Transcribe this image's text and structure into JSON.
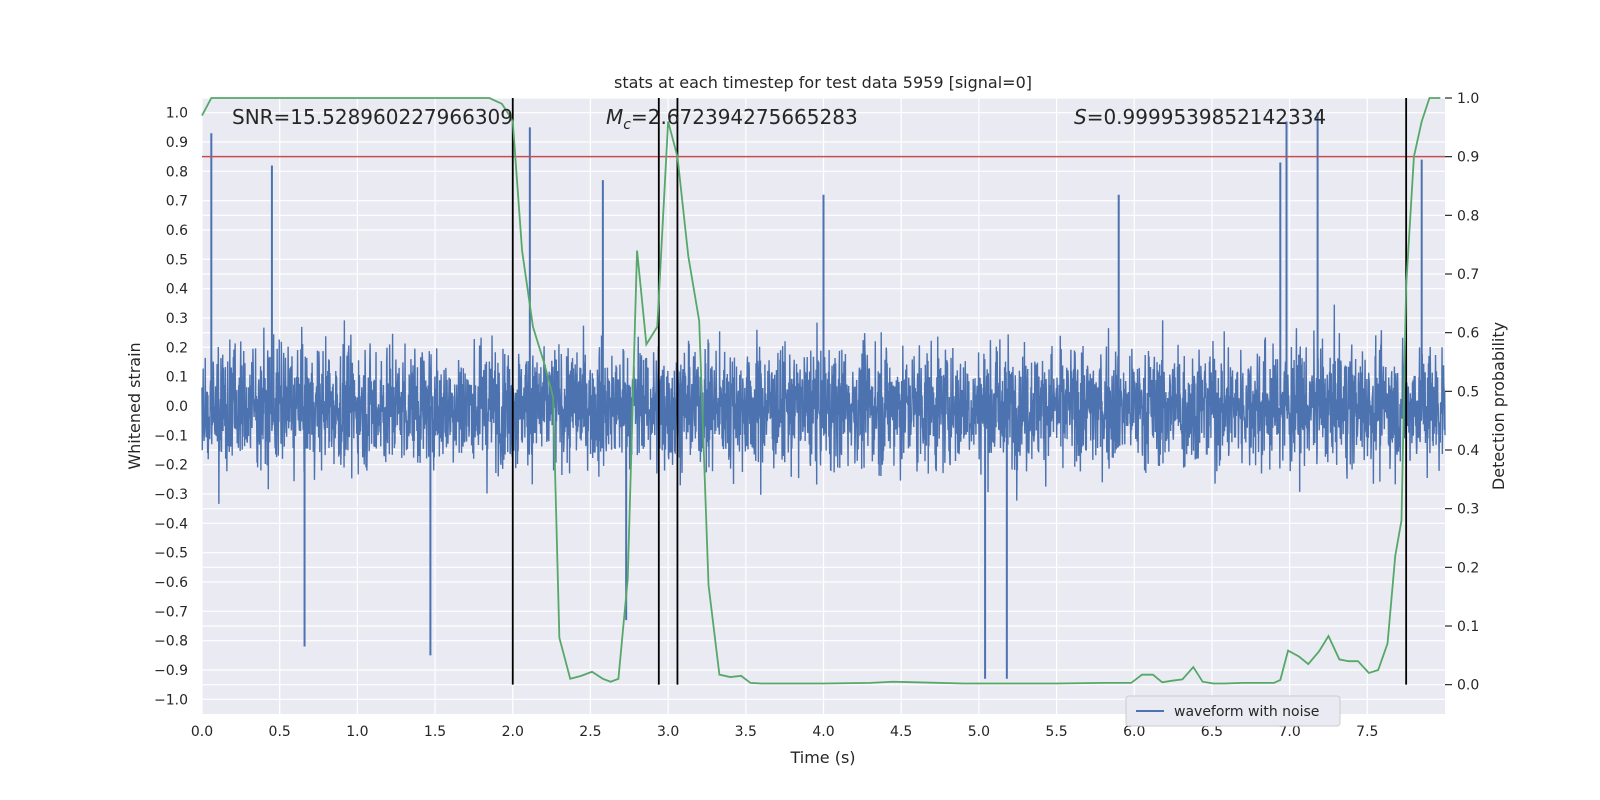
{
  "chart_data": {
    "type": "line",
    "title": "stats at each timestep for test data 5959 [signal=0]",
    "xlabel": "Time (s)",
    "ylabel": "Whitened strain",
    "y2label": "Detection probability",
    "xlim": [
      0.0,
      8.0
    ],
    "ylim": [
      -1.05,
      1.05
    ],
    "y2lim": [
      -0.05,
      1.0
    ],
    "xticks": [
      0.0,
      0.5,
      1.0,
      1.5,
      2.0,
      2.5,
      3.0,
      3.5,
      4.0,
      4.5,
      5.0,
      5.5,
      6.0,
      6.5,
      7.0,
      7.5
    ],
    "xtick_labels": [
      "0.0",
      "0.5",
      "1.0",
      "1.5",
      "2.0",
      "2.5",
      "3.0",
      "3.5",
      "4.0",
      "4.5",
      "5.0",
      "5.5",
      "6.0",
      "6.5",
      "7.0",
      "7.5"
    ],
    "yticks": [
      1.0,
      0.9,
      0.8,
      0.7,
      0.6,
      0.5,
      0.4,
      0.3,
      0.2,
      0.1,
      0.0,
      -0.1,
      -0.2,
      -0.3,
      -0.4,
      -0.5,
      -0.6,
      -0.7,
      -0.8,
      -0.9,
      -1.0
    ],
    "ytick_labels": [
      "1.0",
      "0.9",
      "0.8",
      "0.7",
      "0.6",
      "0.5",
      "0.4",
      "0.3",
      "0.2",
      "0.1",
      "0.0",
      "−0.1",
      "−0.2",
      "−0.3",
      "−0.4",
      "−0.5",
      "−0.6",
      "−0.7",
      "−0.8",
      "−0.9",
      "−1.0"
    ],
    "y2ticks": [
      1.0,
      0.9,
      0.8,
      0.7,
      0.6,
      0.5,
      0.4,
      0.3,
      0.2,
      0.1,
      0.0
    ],
    "y2tick_labels": [
      "1.0",
      "0.9",
      "0.8",
      "0.7",
      "0.6",
      "0.5",
      "0.4",
      "0.3",
      "0.2",
      "0.1",
      "0.0"
    ],
    "grid": true,
    "legend": {
      "placement": "lower-right",
      "entries": [
        "waveform with noise"
      ]
    },
    "annotations": {
      "snr": "SNR=15.528960227966309",
      "mc_symbol": "M",
      "mc_sub": "c",
      "mc_value": "=2.672394275665283",
      "s_symbol": "S",
      "s_value": "=0.9999539852142334"
    },
    "threshold": {
      "axis": "y2",
      "value": 0.9,
      "color": "#c44e52"
    },
    "vertical_lines": [
      2.0,
      2.94,
      3.06,
      7.75
    ],
    "vertical_line_range_y2": [
      0.0,
      1.0
    ],
    "waveform": {
      "name": "waveform with noise",
      "color": "#4c72b0",
      "x_range": [
        0.0,
        8.0
      ],
      "peaks": [
        {
          "x": 0.06,
          "y": 0.93
        },
        {
          "x": 0.45,
          "y": 0.82
        },
        {
          "x": 0.66,
          "y": -0.82
        },
        {
          "x": 1.47,
          "y": -0.85
        },
        {
          "x": 2.11,
          "y": 0.95
        },
        {
          "x": 2.58,
          "y": 0.77
        },
        {
          "x": 2.73,
          "y": -0.73
        },
        {
          "x": 5.04,
          "y": -0.93
        },
        {
          "x": 5.18,
          "y": -0.93
        },
        {
          "x": 6.94,
          "y": 0.83
        },
        {
          "x": 6.98,
          "y": 0.97
        },
        {
          "x": 7.18,
          "y": 1.0
        },
        {
          "x": 7.85,
          "y": 0.84
        },
        {
          "x": 4.0,
          "y": 0.72
        },
        {
          "x": 5.9,
          "y": 0.72
        }
      ]
    },
    "detection_probability": {
      "name": "detection probability",
      "color": "#55a868",
      "x": [
        0.0,
        0.06,
        0.2,
        0.5,
        1.0,
        1.5,
        1.85,
        1.93,
        1.98,
        2.0,
        2.06,
        2.13,
        2.2,
        2.26,
        2.3,
        2.37,
        2.44,
        2.51,
        2.58,
        2.63,
        2.68,
        2.74,
        2.8,
        2.86,
        2.93,
        3.0,
        3.06,
        3.13,
        3.2,
        3.26,
        3.33,
        3.4,
        3.47,
        3.53,
        3.6,
        4.0,
        4.3,
        4.45,
        4.6,
        4.9,
        5.2,
        5.5,
        5.8,
        5.98,
        6.05,
        6.12,
        6.18,
        6.25,
        6.31,
        6.38,
        6.44,
        6.51,
        6.58,
        6.7,
        6.9,
        6.94,
        6.99,
        7.06,
        7.12,
        7.19,
        7.25,
        7.32,
        7.38,
        7.44,
        7.51,
        7.57,
        7.63,
        7.68,
        7.72,
        7.75,
        7.8,
        7.85,
        7.9,
        7.94,
        7.97
      ],
      "y": [
        0.97,
        1.0,
        1.0,
        1.0,
        1.0,
        1.0,
        1.0,
        0.99,
        0.97,
        0.96,
        0.74,
        0.61,
        0.55,
        0.49,
        0.08,
        0.01,
        0.015,
        0.022,
        0.01,
        0.005,
        0.01,
        0.18,
        0.74,
        0.58,
        0.61,
        0.96,
        0.9,
        0.73,
        0.62,
        0.17,
        0.017,
        0.013,
        0.015,
        0.003,
        0.002,
        0.002,
        0.003,
        0.005,
        0.004,
        0.002,
        0.002,
        0.002,
        0.003,
        0.003,
        0.017,
        0.017,
        0.004,
        0.007,
        0.009,
        0.03,
        0.005,
        0.002,
        0.002,
        0.003,
        0.003,
        0.008,
        0.058,
        0.048,
        0.035,
        0.057,
        0.083,
        0.043,
        0.04,
        0.04,
        0.02,
        0.025,
        0.07,
        0.22,
        0.28,
        0.68,
        0.9,
        0.96,
        1.0,
        1.0,
        1.0
      ]
    }
  }
}
